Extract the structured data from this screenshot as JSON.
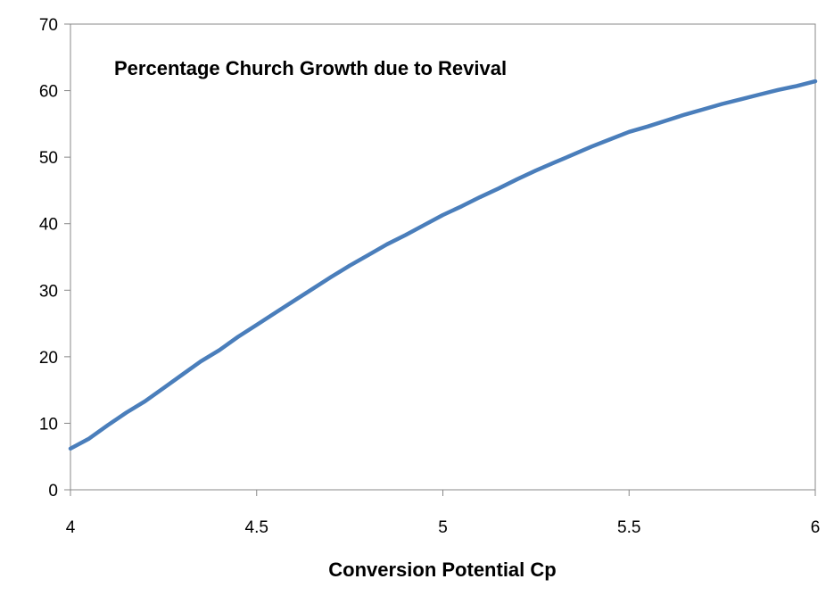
{
  "chart_data": {
    "type": "line",
    "title": "Percentage Church Growth due to Revival",
    "xlabel": "Conversion Potential Cp",
    "ylabel": "",
    "xlim": [
      4,
      6
    ],
    "ylim": [
      0,
      70
    ],
    "xticks": [
      4,
      4.5,
      5,
      5.5,
      6
    ],
    "xtick_labels": [
      "4",
      "4.5",
      "5",
      "5.5",
      "6"
    ],
    "yticks": [
      0,
      10,
      20,
      30,
      40,
      50,
      60,
      70
    ],
    "ytick_labels": [
      "0",
      "10",
      "20",
      "30",
      "40",
      "50",
      "60",
      "70"
    ],
    "grid": false,
    "legend": "none",
    "series": [
      {
        "color": "#4a7ebb",
        "x": [
          4.0,
          4.05,
          4.1,
          4.15,
          4.2,
          4.25,
          4.3,
          4.35,
          4.4,
          4.45,
          4.5,
          4.55,
          4.6,
          4.65,
          4.7,
          4.75,
          4.8,
          4.85,
          4.9,
          4.95,
          5.0,
          5.05,
          5.1,
          5.15,
          5.2,
          5.25,
          5.3,
          5.35,
          5.4,
          5.45,
          5.5,
          5.55,
          5.6,
          5.65,
          5.7,
          5.75,
          5.8,
          5.85,
          5.9,
          5.95,
          6.0
        ],
        "y": [
          6.2,
          7.7,
          9.7,
          11.6,
          13.3,
          15.3,
          17.3,
          19.3,
          21.0,
          23.0,
          24.8,
          26.6,
          28.4,
          30.2,
          32.0,
          33.7,
          35.3,
          36.9,
          38.3,
          39.8,
          41.3,
          42.6,
          44.0,
          45.3,
          46.7,
          48.0,
          49.2,
          50.4,
          51.6,
          52.7,
          53.8,
          54.6,
          55.5,
          56.4,
          57.2,
          58.0,
          58.7,
          59.4,
          60.1,
          60.7,
          61.4
        ]
      }
    ]
  }
}
